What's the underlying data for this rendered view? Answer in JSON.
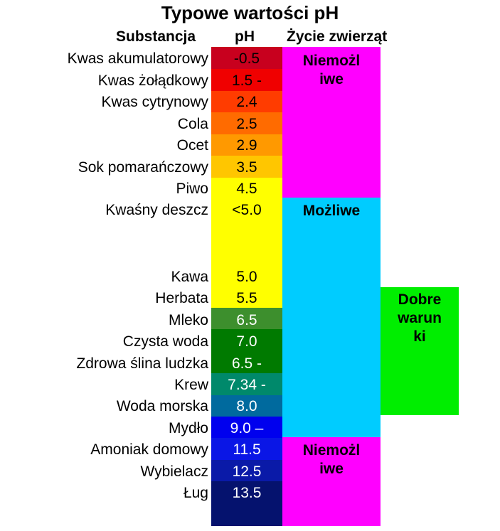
{
  "title": "Typowe wartości pH",
  "headers": {
    "substance": "Substancja",
    "ph": "pH",
    "life": "Życie zwierząt"
  },
  "rows": [
    {
      "substance": "Kwas akumulatorowy",
      "ph": "-0.5",
      "color": "#c8001e",
      "text_color": "#000000"
    },
    {
      "substance": "Kwas żołądkowy",
      "ph": "1.5 -",
      "color": "#f00000",
      "text_color": "#000000"
    },
    {
      "substance": "Kwas cytrynowy",
      "ph": "2.4",
      "color": "#ff3c00",
      "text_color": "#000000"
    },
    {
      "substance": "Cola",
      "ph": "2.5",
      "color": "#ff6b00",
      "text_color": "#000000"
    },
    {
      "substance": "Ocet",
      "ph": "2.9",
      "color": "#ff9900",
      "text_color": "#000000"
    },
    {
      "substance": "Sok pomarańczowy",
      "ph": "3.5",
      "color": "#ffc600",
      "text_color": "#000000"
    },
    {
      "substance": "Piwo",
      "ph": "4.5",
      "color": "#ffff00",
      "text_color": "#000000"
    },
    {
      "substance": "Kwaśny deszcz",
      "ph": "<5.0",
      "color": "#ffff00",
      "text_color": "#000000"
    },
    {
      "substance": "Kawa",
      "ph": "5.0",
      "color": "#ffff00",
      "text_color": "#000000"
    },
    {
      "substance": "Herbata",
      "ph": "5.5",
      "color": "#ffff00",
      "text_color": "#000000"
    },
    {
      "substance": "Mleko",
      "ph": "6.5",
      "color": "#3d8f2d",
      "text_color": "#ffffff"
    },
    {
      "substance": "Czysta woda",
      "ph": "7.0",
      "color": "#007a00",
      "text_color": "#ffffff"
    },
    {
      "substance": "Zdrowa ślina ludzka",
      "ph": "6.5 -",
      "color": "#007a00",
      "text_color": "#ffffff"
    },
    {
      "substance": "Krew",
      "ph": "7.34 -",
      "color": "#00896b",
      "text_color": "#ffffff"
    },
    {
      "substance": "Woda morska",
      "ph": "8.0",
      "color": "#006a9e",
      "text_color": "#ffffff"
    },
    {
      "substance": "Mydło",
      "ph": "9.0 –",
      "color": "#0000ee",
      "text_color": "#ffffff"
    },
    {
      "substance": "Amoniak domowy",
      "ph": "11.5",
      "color": "#0a16e6",
      "text_color": "#ffffff"
    },
    {
      "substance": "Wybielacz",
      "ph": "12.5",
      "color": "#0a1aa8",
      "text_color": "#ffffff"
    },
    {
      "substance": "Ług",
      "ph": "13.5",
      "color": "#05126e",
      "text_color": "#ffffff"
    }
  ],
  "life": [
    {
      "label_lines": [
        "Niemożl",
        "iwe"
      ],
      "color": "#ff00ff"
    },
    {
      "label_lines": [
        "Możliwe"
      ],
      "color": "#00ccff"
    },
    {
      "label_lines": [
        "Dobre",
        "warun",
        "ki"
      ],
      "color": "#00ee00"
    },
    {
      "label_lines": [
        "Niemożl",
        "iwe"
      ],
      "color": "#ff00ff"
    }
  ]
}
